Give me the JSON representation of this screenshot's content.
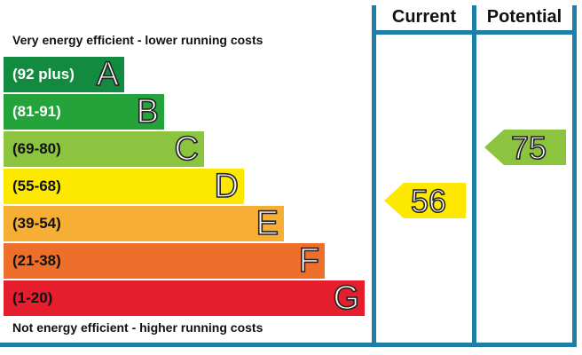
{
  "top_caption": "Very energy efficient - lower running costs",
  "bottom_caption": "Not energy efficient - higher running costs",
  "columns": {
    "current": "Current",
    "potential": "Potential"
  },
  "bands": [
    {
      "range": "(92 plus)",
      "letter": "A",
      "color": "#128a3f",
      "text_color": "#ffffff"
    },
    {
      "range": "(81-91)",
      "letter": "B",
      "color": "#23a33a",
      "text_color": "#ffffff"
    },
    {
      "range": "(69-80)",
      "letter": "C",
      "color": "#8cc43f",
      "text_color": "#111111"
    },
    {
      "range": "(55-68)",
      "letter": "D",
      "color": "#fde900",
      "text_color": "#111111"
    },
    {
      "range": "(39-54)",
      "letter": "E",
      "color": "#f6ae35",
      "text_color": "#111111"
    },
    {
      "range": "(21-38)",
      "letter": "F",
      "color": "#ee6f2c",
      "text_color": "#111111"
    },
    {
      "range": "(1-20)",
      "letter": "G",
      "color": "#e41e2c",
      "text_color": "#111111"
    }
  ],
  "ratings": {
    "current": {
      "value": "56",
      "band": "D",
      "color": "#fde900"
    },
    "potential": {
      "value": "75",
      "band": "C",
      "color": "#8cc43f"
    }
  },
  "frame_color": "#1f7ea8"
}
